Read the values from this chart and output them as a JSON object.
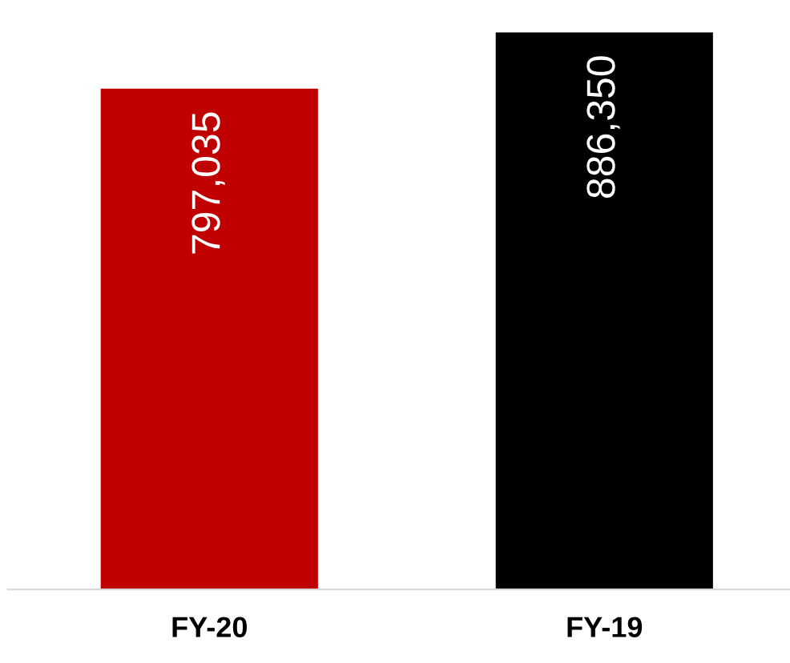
{
  "chart_data": {
    "type": "bar",
    "categories": [
      "FY-20",
      "FY-19"
    ],
    "values": [
      797035,
      886350
    ],
    "colors": [
      "#c00000",
      "#000000"
    ],
    "value_labels": [
      "797,035",
      "886,350"
    ],
    "grid": false,
    "legend": false
  }
}
